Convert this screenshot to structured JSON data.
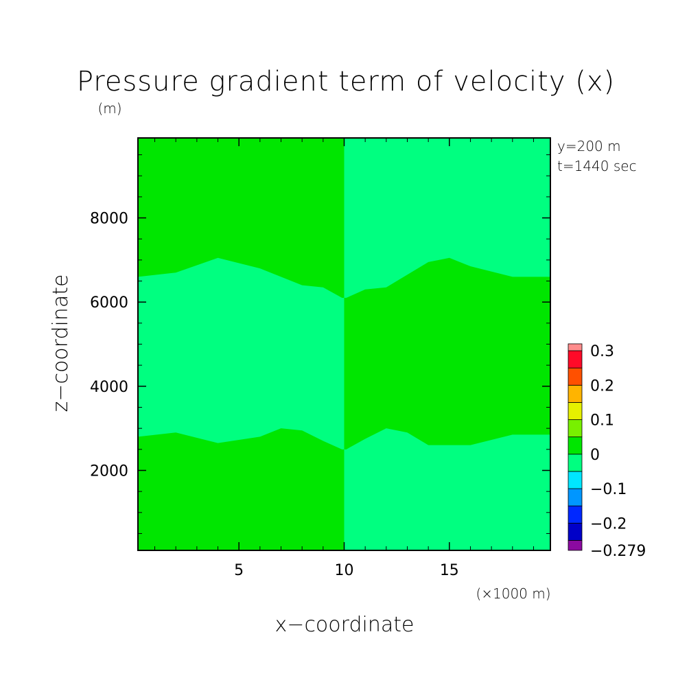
{
  "chart_data": {
    "type": "heatmap",
    "title": "Pressure gradient term of velocity (x)",
    "units_label": "(m)",
    "xlabel": "x−coordinate",
    "ylabel": "z−coordinate",
    "x_scale_note": "(×1000 m)",
    "annotations": [
      "y=200 m",
      "t=1440 sec"
    ],
    "xlim": [
      0.2,
      19.8
    ],
    "ylim": [
      100,
      9900
    ],
    "x_ticks": [
      {
        "value": 5,
        "label": "5"
      },
      {
        "value": 10,
        "label": "10"
      },
      {
        "value": 15,
        "label": "15"
      }
    ],
    "y_ticks": [
      {
        "value": 2000,
        "label": "2000"
      },
      {
        "value": 4000,
        "label": "4000"
      },
      {
        "value": 6000,
        "label": "6000"
      },
      {
        "value": 8000,
        "label": "8000"
      }
    ],
    "colorbar": {
      "levels": [
        -0.279,
        -0.25,
        -0.2,
        -0.15,
        -0.1,
        -0.05,
        0,
        0.05,
        0.1,
        0.15,
        0.2,
        0.25,
        0.3,
        0.32
      ],
      "colors": [
        "#8b0aa0",
        "#0000c8",
        "#0028ff",
        "#0096ff",
        "#00e6ff",
        "#00ff80",
        "#00e600",
        "#78f000",
        "#e6f000",
        "#ffb400",
        "#ff5000",
        "#ff0a28",
        "#ff8c8c"
      ],
      "labels": [
        {
          "value": -0.279,
          "label": "−0.279"
        },
        {
          "value": -0.2,
          "label": "−0.2"
        },
        {
          "value": -0.1,
          "label": "−0.1"
        },
        {
          "value": 0,
          "label": "0"
        },
        {
          "value": 0.1,
          "label": "0.1"
        },
        {
          "value": 0.2,
          "label": "0.2"
        },
        {
          "value": 0.3,
          "label": "0.3"
        }
      ]
    },
    "regions": {
      "background_level": 0.02,
      "contour_level": -0.02,
      "background_color": "#00e600",
      "contour_color": "#00ff80",
      "band_upper_x": [
        0.2,
        2,
        4,
        6,
        8,
        9,
        9.9,
        10.1,
        11,
        12,
        14,
        15,
        16,
        18,
        19.8
      ],
      "band_upper_z": [
        6600,
        6700,
        7050,
        6800,
        6400,
        6350,
        6100,
        6100,
        6300,
        6350,
        6950,
        7050,
        6850,
        6600,
        6600
      ],
      "band_lower_x": [
        0.2,
        2,
        4,
        6,
        7,
        8,
        9,
        9.9,
        10.1,
        11,
        12,
        13,
        14,
        16,
        18,
        19.8
      ],
      "band_lower_z": [
        2800,
        2900,
        2650,
        2800,
        3000,
        2950,
        2700,
        2500,
        2500,
        2750,
        3000,
        2900,
        2600,
        2600,
        2850,
        2850
      ],
      "split_x": 10
    }
  }
}
